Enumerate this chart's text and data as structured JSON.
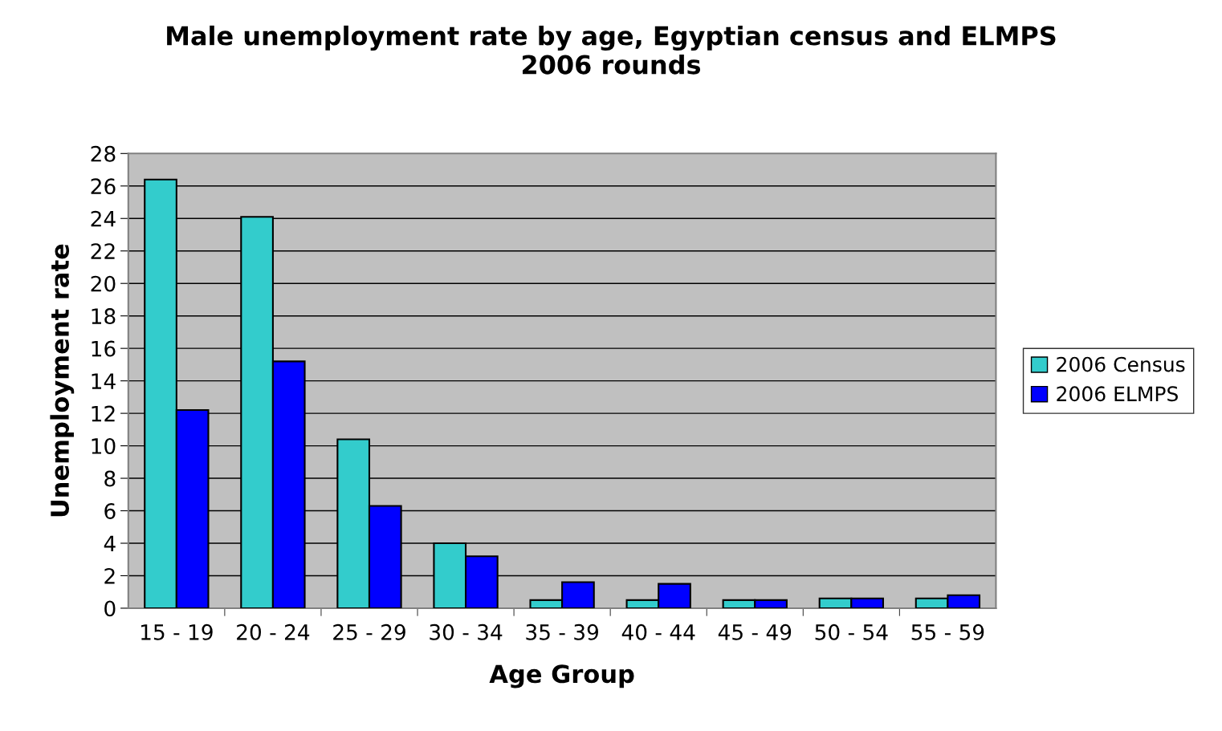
{
  "chart_data": {
    "type": "bar",
    "title": "Male unemployment rate by age, Egyptian census and ELMPS\n2006 rounds",
    "xlabel": "Age Group",
    "ylabel": "Unemployment rate",
    "categories": [
      "15 - 19",
      "20 - 24",
      "25 - 29",
      "30 - 34",
      "35 - 39",
      "40 - 44",
      "45 - 49",
      "50 - 54",
      "55 - 59"
    ],
    "series": [
      {
        "name": "2006 Census",
        "color": "#33cccc",
        "values": [
          26.4,
          24.1,
          10.4,
          4.0,
          0.5,
          0.5,
          0.5,
          0.6,
          0.6
        ]
      },
      {
        "name": "2006 ELMPS",
        "color": "#0000ff",
        "values": [
          12.2,
          15.2,
          6.3,
          3.2,
          1.6,
          1.5,
          0.5,
          0.6,
          0.8
        ]
      }
    ],
    "ylim": [
      0,
      28
    ],
    "yticks": [
      0,
      2,
      4,
      6,
      8,
      10,
      12,
      14,
      16,
      18,
      20,
      22,
      24,
      26,
      28
    ],
    "grid": "y",
    "legend": "right"
  }
}
